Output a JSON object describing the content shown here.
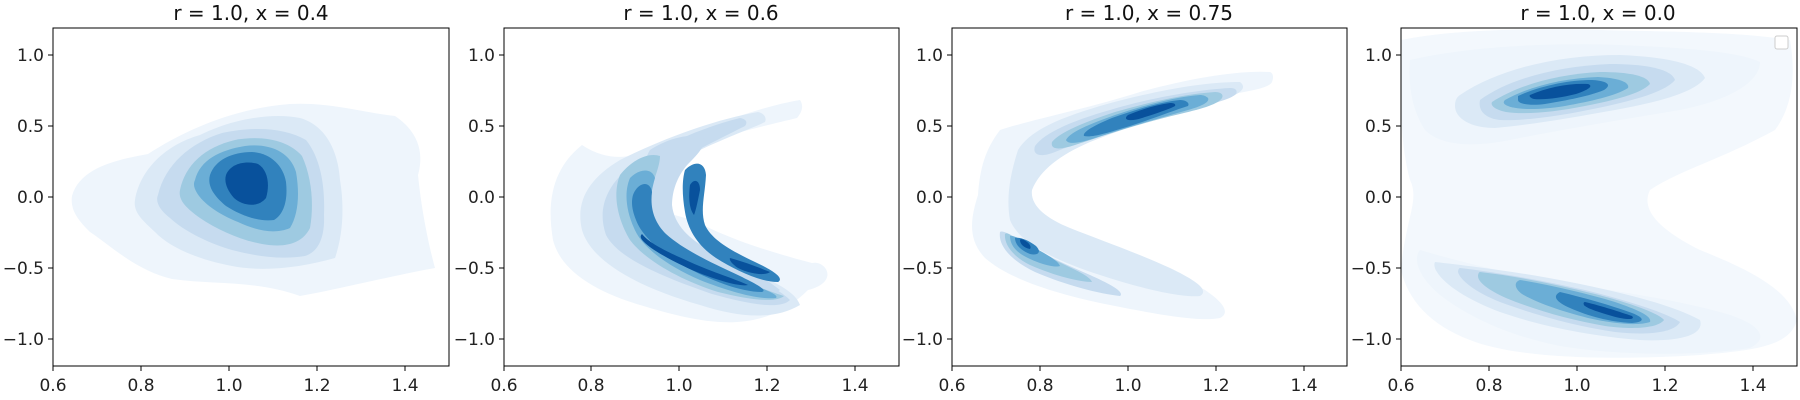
{
  "chart_data": [
    {
      "type": "contour",
      "title": "r = 1.0, x = 0.4",
      "xlabel": "",
      "ylabel": "",
      "xlim": [
        0.6,
        1.5
      ],
      "ylim": [
        -1.2,
        1.2
      ],
      "xticks": [
        "0.6",
        "0.8",
        "1.0",
        "1.2",
        "1.4"
      ],
      "yticks": [
        "−1.0",
        "−0.5",
        "0.0",
        "0.5",
        "1.0"
      ],
      "colormap": "Blues",
      "legend": null,
      "density_modes": [
        {
          "x": 1.05,
          "y": 0.12,
          "spread_x": 0.12,
          "spread_y": 0.26,
          "weight": 1.0
        }
      ]
    },
    {
      "type": "contour",
      "title": "r = 1.0, x = 0.6",
      "xlabel": "",
      "ylabel": "",
      "xlim": [
        0.6,
        1.5
      ],
      "ylim": [
        -1.2,
        1.2
      ],
      "xticks": [
        "0.6",
        "0.8",
        "1.0",
        "1.2",
        "1.4"
      ],
      "yticks": [
        "−1.0",
        "−0.5",
        "0.0",
        "0.5",
        "1.0"
      ],
      "colormap": "Blues",
      "legend": null,
      "density_modes": [
        {
          "x": 0.95,
          "y": 0.0,
          "spread_x": 0.05,
          "spread_y": 0.3,
          "weight": 0.85
        },
        {
          "x": 0.95,
          "y": -0.35,
          "spread_x": 0.12,
          "spread_y": 0.08,
          "weight": 0.95
        },
        {
          "x": 1.18,
          "y": -0.47,
          "spread_x": 0.06,
          "spread_y": 0.06,
          "weight": 0.8
        }
      ]
    },
    {
      "type": "contour",
      "title": "r = 1.0, x = 0.75",
      "xlabel": "",
      "ylabel": "",
      "xlim": [
        0.6,
        1.5
      ],
      "ylim": [
        -1.2,
        1.2
      ],
      "xticks": [
        "0.6",
        "0.8",
        "1.0",
        "1.2",
        "1.4"
      ],
      "yticks": [
        "−1.0",
        "−0.5",
        "0.0",
        "0.5",
        "1.0"
      ],
      "colormap": "Blues",
      "legend": null,
      "density_modes": [
        {
          "x": 1.0,
          "y": 0.6,
          "spread_x": 0.12,
          "spread_y": 0.06,
          "weight": 0.9
        },
        {
          "x": 0.78,
          "y": -0.38,
          "spread_x": 0.05,
          "spread_y": 0.06,
          "weight": 0.85
        }
      ]
    },
    {
      "type": "contour",
      "title": "r = 1.0, x = 0.0",
      "xlabel": "",
      "ylabel": "",
      "xlim": [
        0.6,
        1.5
      ],
      "ylim": [
        -1.2,
        1.2
      ],
      "xticks": [
        "0.6",
        "0.8",
        "1.0",
        "1.2",
        "1.4"
      ],
      "yticks": [
        "−1.0",
        "−0.5",
        "0.0",
        "0.5",
        "1.0"
      ],
      "colormap": "Blues",
      "legend": "top-right",
      "density_modes": [
        {
          "x": 0.95,
          "y": 0.75,
          "spread_x": 0.1,
          "spread_y": 0.05,
          "weight": 0.95
        },
        {
          "x": 1.1,
          "y": -0.83,
          "spread_x": 0.1,
          "spread_y": 0.05,
          "weight": 0.95
        }
      ]
    }
  ]
}
